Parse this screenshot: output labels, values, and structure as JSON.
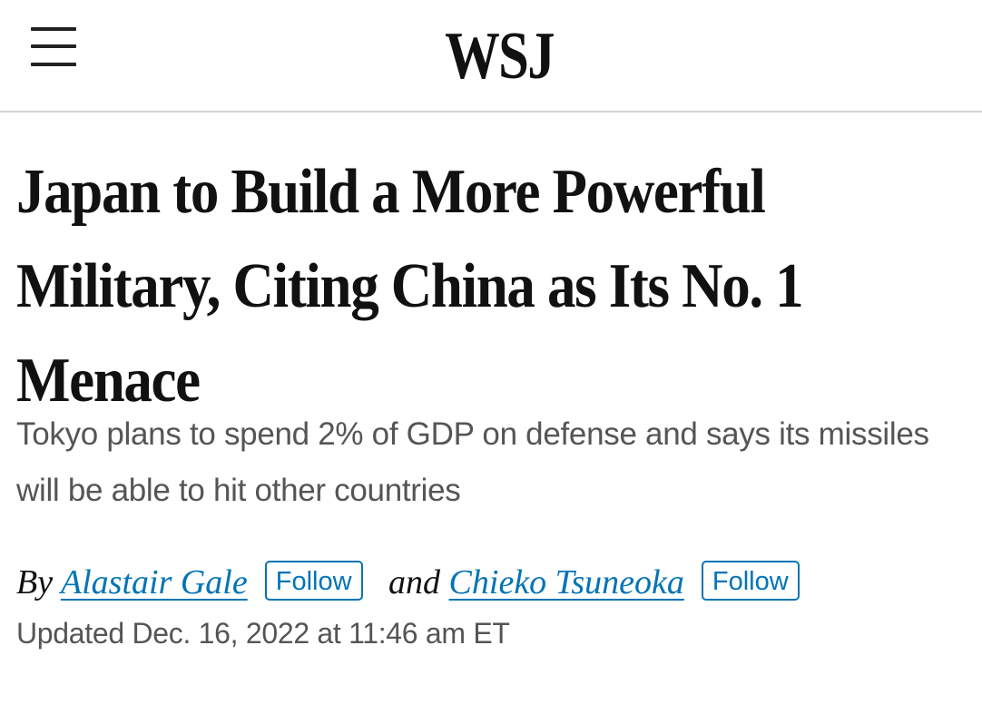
{
  "header": {
    "logo": "WSJ",
    "menu_icon": "hamburger-menu-icon"
  },
  "article": {
    "headline": "Japan to Build a More Powerful Military, Citing China as Its No. 1 Menace",
    "dek": "Tokyo plans to spend 2% of GDP on defense and says its missiles will be able to hit other countries",
    "byline": {
      "prefix": "By",
      "authors": [
        {
          "name": "Alastair Gale",
          "follow_label": "Follow"
        },
        {
          "name": "Chieko Tsuneoka",
          "follow_label": "Follow"
        }
      ],
      "conjunction": "and"
    },
    "timestamp": "Updated Dec. 16, 2022 at 11:46 am ET"
  },
  "colors": {
    "link": "#0274b6",
    "text": "#111111",
    "muted": "#555555",
    "divider": "#d4d4d4"
  }
}
